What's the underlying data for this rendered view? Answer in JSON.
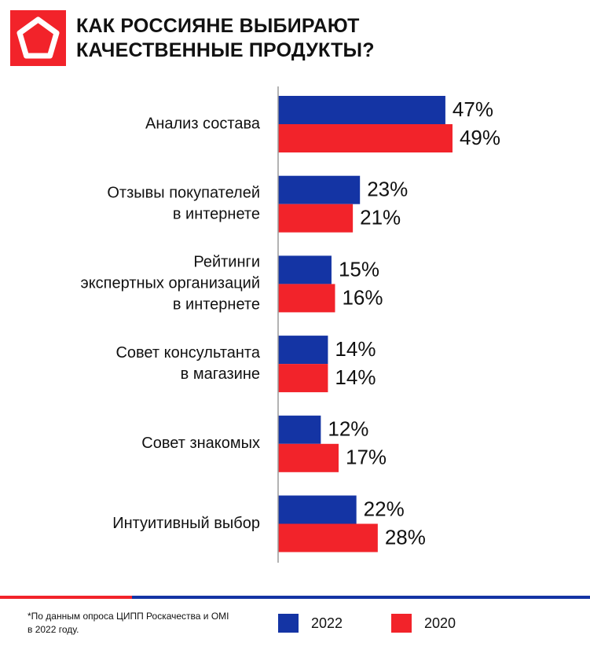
{
  "title_lines": [
    "КАК РОССИЯНЕ ВЫБИРАЮТ",
    "КАЧЕСТВЕННЫЕ ПРОДУКТЫ?"
  ],
  "footnote_lines": [
    "*По данным опроса ЦИПП Роскачества и OMI",
    "в 2022 году."
  ],
  "colors": {
    "blue": "#1434a4",
    "red": "#f2232a",
    "axis": "#9a9a9a"
  },
  "chart_data": {
    "type": "bar",
    "orientation": "horizontal",
    "categories": [
      [
        "Анализ состава"
      ],
      [
        "Отзывы покупателей",
        "в интернете"
      ],
      [
        "Рейтинги",
        "экспертных организаций",
        "в интернете"
      ],
      [
        "Совет консультанта",
        "в магазине"
      ],
      [
        "Совет знакомых"
      ],
      [
        "Интуитивный выбор"
      ]
    ],
    "series": [
      {
        "name": "2022",
        "color": "#1434a4",
        "values": [
          47,
          23,
          15,
          14,
          12,
          22
        ],
        "labels": [
          "47%",
          "23%",
          "15%",
          "14%",
          "12%",
          "22%"
        ]
      },
      {
        "name": "2020",
        "color": "#f2232a",
        "values": [
          49,
          21,
          16,
          14,
          17,
          28
        ],
        "labels": [
          "49%",
          "21%",
          "16%",
          "14%",
          "17%",
          "28%"
        ]
      }
    ],
    "unit": "%",
    "legend_position": "bottom"
  }
}
